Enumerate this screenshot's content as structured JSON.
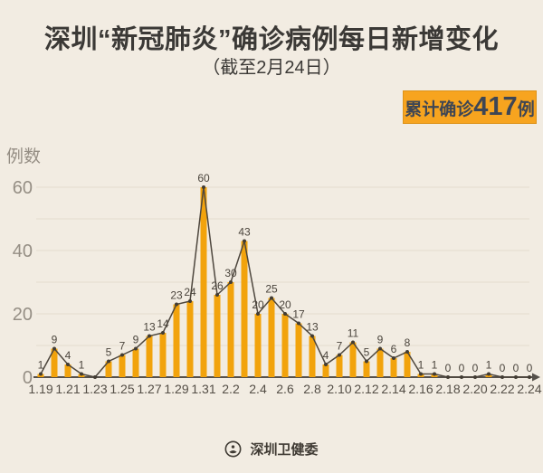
{
  "header": {
    "title": "深圳“新冠肺炎”确诊病例每日新增变化",
    "subtitle": "（截至2月24日）"
  },
  "badge": {
    "prefix": "累计确诊",
    "value": "417",
    "suffix": "例"
  },
  "footer": {
    "org": "深圳卫健委",
    "logo_icon": "round-seal-emblem"
  },
  "colors": {
    "background": "#F2ECE2",
    "title_text": "#3B3936",
    "bar_fill": "#F2A30C",
    "trend_line": "#4E473E",
    "data_point": "#423C33",
    "value_label": "#4A443C",
    "x_tick_label": "#544E46",
    "y_tick_label": "#958E84",
    "y_axis_title": "#958E84",
    "gridline": "#E4DCCF",
    "x_axis": "#55504A",
    "badge_bg": "#F7A41F",
    "badge_text": "#3E4654",
    "footer_text": "#403B34"
  },
  "chart_data": {
    "type": "bar",
    "title": "深圳“新冠肺炎”确诊病例每日新增变化",
    "subtitle": "截至2月24日",
    "xlabel": "",
    "ylabel": "例数",
    "categories": [
      "1.19",
      "1.20",
      "1.21",
      "1.22",
      "1.23",
      "1.24",
      "1.25",
      "1.26",
      "1.27",
      "1.28",
      "1.29",
      "1.30",
      "1.31",
      "2.1",
      "2.2",
      "2.3",
      "2.4",
      "2.5",
      "2.6",
      "2.7",
      "2.8",
      "2.9",
      "2.10",
      "2.11",
      "2.12",
      "2.13",
      "2.14",
      "2.15",
      "2.16",
      "2.17",
      "2.18",
      "2.19",
      "2.20",
      "2.21",
      "2.22",
      "2.23",
      "2.24"
    ],
    "values": [
      1,
      9,
      4,
      1,
      0,
      5,
      7,
      9,
      13,
      14,
      23,
      24,
      60,
      26,
      30,
      43,
      20,
      25,
      20,
      17,
      13,
      4,
      7,
      11,
      5,
      9,
      6,
      8,
      1,
      1,
      0,
      0,
      0,
      1,
      0,
      0,
      0
    ],
    "line_overlay": true,
    "value_labels_shown": true,
    "unlabeled_indices": [
      4
    ],
    "x_tick_interval": 2,
    "y_ticks": [
      0,
      20,
      40,
      60
    ],
    "ylim": [
      0,
      65
    ],
    "grid_step": 10,
    "grid": true,
    "legend": "none",
    "cumulative_total": 417
  }
}
